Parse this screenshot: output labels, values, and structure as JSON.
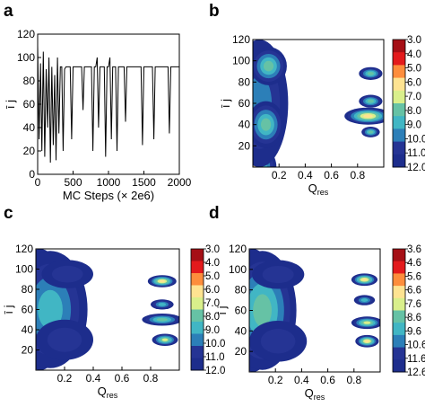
{
  "chart_data": [
    {
      "panel": "a",
      "type": "line",
      "xlabel": "MC Steps (× 2e6)",
      "ylabel": "ī j",
      "xlim": [
        0,
        2000
      ],
      "ylim": [
        0,
        120
      ],
      "xticks": [
        "0",
        "500",
        "1000",
        "1500",
        "2000"
      ],
      "xtick_values": [
        0,
        500,
        1000,
        1500,
        2000
      ],
      "yticks": [
        "0",
        "20",
        "40",
        "60",
        "80",
        "100",
        "120"
      ],
      "ytick_values": [
        0,
        20,
        40,
        60,
        80,
        100,
        120
      ],
      "series": [
        {
          "color": "#000000",
          "x": [
            0,
            20,
            40,
            60,
            80,
            100,
            120,
            140,
            160,
            180,
            200,
            220,
            240,
            260,
            280,
            300,
            320,
            340,
            360,
            380,
            400,
            420,
            440,
            460,
            480,
            500,
            520,
            540,
            560,
            580,
            600,
            620,
            640,
            660,
            680,
            700,
            720,
            740,
            760,
            780,
            800,
            820,
            840,
            860,
            880,
            900,
            920,
            940,
            960,
            980,
            1000,
            1020,
            1040,
            1060,
            1080,
            1100,
            1120,
            1140,
            1160,
            1180,
            1200,
            1220,
            1240,
            1260,
            1280,
            1300,
            1320,
            1340,
            1360,
            1380,
            1400,
            1420,
            1440,
            1460,
            1480,
            1500,
            1520,
            1540,
            1560,
            1580,
            1600,
            1620,
            1640,
            1660,
            1680,
            1700,
            1720,
            1740,
            1760,
            1780,
            1800,
            1820,
            1840,
            1860,
            1880,
            1900,
            1920,
            1940,
            1960,
            1980,
            2000
          ],
          "y": [
            110,
            30,
            95,
            20,
            105,
            15,
            90,
            40,
            100,
            10,
            92,
            25,
            85,
            12,
            100,
            35,
            92,
            92,
            20,
            90,
            92,
            92,
            92,
            92,
            30,
            92,
            92,
            92,
            92,
            92,
            92,
            92,
            55,
            92,
            92,
            92,
            92,
            92,
            92,
            20,
            92,
            92,
            100,
            40,
            92,
            92,
            92,
            92,
            15,
            92,
            92,
            100,
            30,
            92,
            92,
            92,
            20,
            92,
            92,
            92,
            92,
            92,
            45,
            92,
            92,
            92,
            92,
            92,
            92,
            92,
            92,
            92,
            92,
            92,
            25,
            92,
            92,
            92,
            92,
            92,
            92,
            92,
            30,
            92,
            92,
            92,
            92,
            92,
            92,
            92,
            92,
            92,
            92,
            35,
            92,
            92,
            92,
            92,
            92,
            92,
            92
          ]
        }
      ]
    },
    {
      "panel": "b",
      "type": "heatmap",
      "xlabel": "Q",
      "xlabel_sub": "res",
      "ylabel": "ī j",
      "xlim": [
        0,
        1
      ],
      "ylim": [
        0,
        120
      ],
      "xticks": [
        "0.2",
        "0.4",
        "0.6",
        "0.8"
      ],
      "xtick_values": [
        0.2,
        0.4,
        0.6,
        0.8
      ],
      "yticks": [
        "20",
        "40",
        "60",
        "80",
        "100",
        "120"
      ],
      "ytick_values": [
        20,
        40,
        60,
        80,
        100,
        120
      ],
      "colorbar": {
        "ticks": [
          "3.0",
          "4.0",
          "5.0",
          "6.0",
          "7.0",
          "8.0",
          "9.0",
          "10.00",
          "11.0",
          "12.0"
        ],
        "colors": [
          "#a50f15",
          "#e31a1c",
          "#fd8d3c",
          "#fee391",
          "#d9ef8b",
          "#66c2a5",
          "#41b6c4",
          "#2c7fb8",
          "#253494",
          "#1d2d8c"
        ]
      },
      "blobs": [
        {
          "x": 0.0,
          "y": 0.3,
          "r": 0.18,
          "ry": 22,
          "level": 3
        },
        {
          "x": 0.05,
          "y": 60,
          "r": 0.22,
          "ry": 60,
          "level": 7
        },
        {
          "x": 0.1,
          "y": 40,
          "r": 0.14,
          "ry": 22,
          "level": 5
        },
        {
          "x": 0.12,
          "y": 95,
          "r": 0.14,
          "ry": 18,
          "level": 5
        },
        {
          "x": 0.88,
          "y": 48,
          "r": 0.18,
          "ry": 8,
          "level": 3
        },
        {
          "x": 0.9,
          "y": 62,
          "r": 0.09,
          "ry": 6,
          "level": 5
        },
        {
          "x": 0.9,
          "y": 88,
          "r": 0.09,
          "ry": 6,
          "level": 5
        },
        {
          "x": 0.9,
          "y": 33,
          "r": 0.07,
          "ry": 5,
          "level": 5
        }
      ]
    },
    {
      "panel": "c",
      "type": "heatmap",
      "xlabel": "Q",
      "xlabel_sub": "res",
      "ylabel": "ī j",
      "xlim": [
        0,
        1
      ],
      "ylim": [
        0,
        120
      ],
      "xticks": [
        "0.2",
        "0.4",
        "0.6",
        "0.8"
      ],
      "xtick_values": [
        0.2,
        0.4,
        0.6,
        0.8
      ],
      "yticks": [
        "20",
        "40",
        "60",
        "80",
        "100",
        "120"
      ],
      "ytick_values": [
        20,
        40,
        60,
        80,
        100,
        120
      ],
      "colorbar": {
        "ticks": [
          "3.0",
          "4.0",
          "5.0",
          "6.0",
          "7.0",
          "8.0",
          "9.0",
          "10.0",
          "11.0",
          "12.0"
        ],
        "colors": [
          "#a50f15",
          "#e31a1c",
          "#fd8d3c",
          "#fee391",
          "#d9ef8b",
          "#66c2a5",
          "#41b6c4",
          "#2c7fb8",
          "#253494",
          "#1d2d8c"
        ]
      },
      "blobs": [
        {
          "x": 0.03,
          "y": 60,
          "r": 0.18,
          "ry": 60,
          "level": 1
        },
        {
          "x": 0.1,
          "y": 60,
          "r": 0.26,
          "ry": 58,
          "level": 6
        },
        {
          "x": 0.2,
          "y": 30,
          "r": 0.2,
          "ry": 20,
          "level": 8
        },
        {
          "x": 0.22,
          "y": 95,
          "r": 0.18,
          "ry": 14,
          "level": 8
        },
        {
          "x": 0.88,
          "y": 88,
          "r": 0.1,
          "ry": 6,
          "level": 3
        },
        {
          "x": 0.88,
          "y": 50,
          "r": 0.14,
          "ry": 6,
          "level": 5
        },
        {
          "x": 0.9,
          "y": 30,
          "r": 0.09,
          "ry": 6,
          "level": 4
        },
        {
          "x": 0.88,
          "y": 65,
          "r": 0.08,
          "ry": 5,
          "level": 6
        }
      ]
    },
    {
      "panel": "d",
      "type": "heatmap",
      "xlabel": "Q",
      "xlabel_sub": "res",
      "ylabel": "ī j",
      "xlim": [
        0,
        1
      ],
      "ylim": [
        0,
        120
      ],
      "xticks": [
        "0.2",
        "0.4",
        "0.6",
        "0.8"
      ],
      "xtick_values": [
        0.2,
        0.4,
        0.6,
        0.8
      ],
      "yticks": [
        "20",
        "40",
        "60",
        "80",
        "100",
        "120"
      ],
      "ytick_values": [
        20,
        40,
        60,
        80,
        100,
        120
      ],
      "colorbar": {
        "ticks": [
          "3.6",
          "4.6",
          "5.6",
          "6.6",
          "7.6",
          "8.6",
          "9.6",
          "10.6",
          "11.6",
          "12.6"
        ],
        "colors": [
          "#a50f15",
          "#e31a1c",
          "#fd8d3c",
          "#fee391",
          "#d9ef8b",
          "#66c2a5",
          "#41b6c4",
          "#2c7fb8",
          "#253494",
          "#1d2d8c"
        ]
      },
      "blobs": [
        {
          "x": 0.03,
          "y": 60,
          "r": 0.18,
          "ry": 60,
          "level": 1
        },
        {
          "x": 0.1,
          "y": 60,
          "r": 0.26,
          "ry": 58,
          "level": 5
        },
        {
          "x": 0.22,
          "y": 30,
          "r": 0.22,
          "ry": 20,
          "level": 8
        },
        {
          "x": 0.22,
          "y": 95,
          "r": 0.2,
          "ry": 14,
          "level": 8
        },
        {
          "x": 0.88,
          "y": 90,
          "r": 0.1,
          "ry": 6,
          "level": 3
        },
        {
          "x": 0.9,
          "y": 48,
          "r": 0.12,
          "ry": 6,
          "level": 4
        },
        {
          "x": 0.9,
          "y": 30,
          "r": 0.09,
          "ry": 6,
          "level": 3
        },
        {
          "x": 0.88,
          "y": 70,
          "r": 0.08,
          "ry": 5,
          "level": 6
        }
      ]
    }
  ]
}
